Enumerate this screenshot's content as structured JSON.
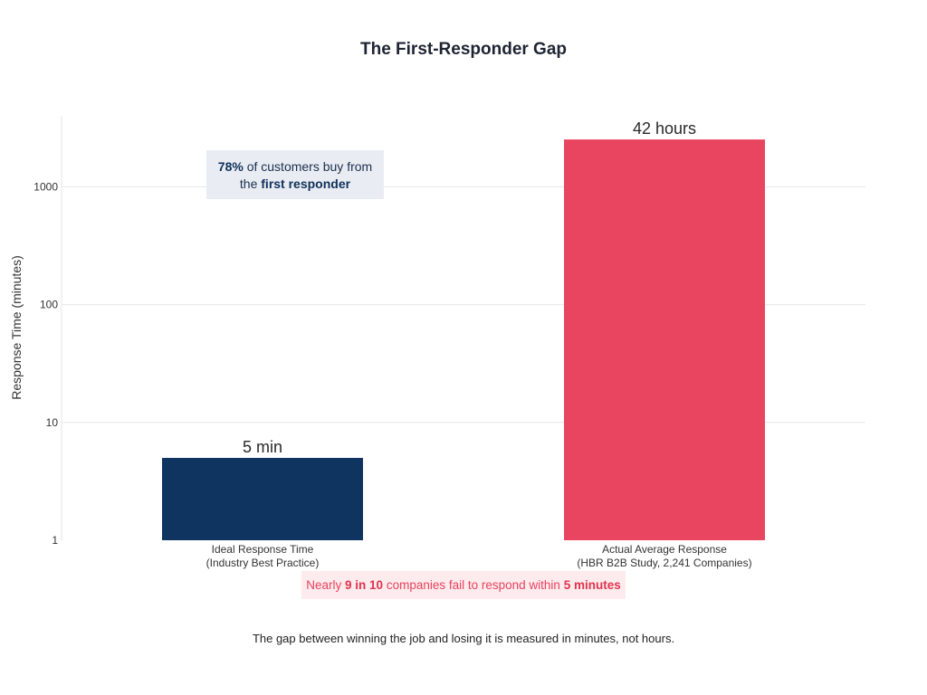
{
  "chart_data": {
    "type": "bar",
    "title": "The First-Responder Gap",
    "ylabel": "Response Time (minutes)",
    "xlabel": "",
    "yscale": "log",
    "ylim": [
      1,
      4000
    ],
    "yticks": [
      1,
      10,
      100,
      1000
    ],
    "ytick_labels": [
      "1",
      "10",
      "100",
      "1000"
    ],
    "grid": true,
    "categories": [
      [
        "Ideal Response Time",
        "(Industry Best Practice)"
      ],
      [
        "Actual Average Response",
        "(HBR B2B Study, 2,241 Companies)"
      ]
    ],
    "values": [
      5,
      2520
    ],
    "data_labels": [
      "5 min",
      "42 hours"
    ],
    "colors": [
      "#0f3460",
      "#e94560"
    ],
    "caption": "The gap between winning the job and losing it is measured in minutes, not hours."
  },
  "annotations": {
    "top": {
      "part1_bold": "78%",
      "part2": " of customers buy from",
      "part3": "the ",
      "part4_bold": "first responder"
    },
    "bottom": {
      "part1": "Nearly ",
      "part2_bold": "9 in 10",
      "part3": " companies fail to respond within ",
      "part4_bold": "5 minutes"
    }
  }
}
